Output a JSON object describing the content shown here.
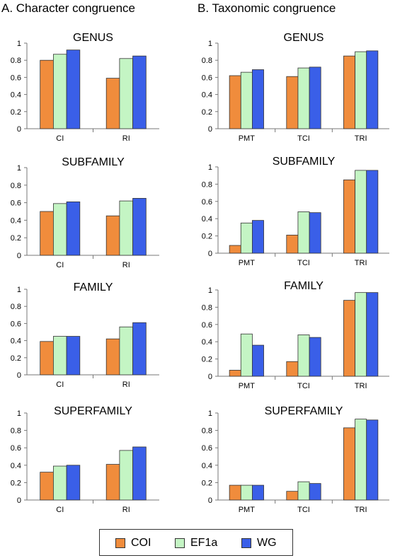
{
  "headings": {
    "a": "A. Character congruence",
    "b": "B. Taxonomic congruence"
  },
  "colors": {
    "COI": "#f08c3c",
    "EF1a": "#c4f5c4",
    "WG": "#3a5fe8"
  },
  "legend": [
    {
      "label": "COI",
      "color": "#f08c3c"
    },
    {
      "label": "EF1a",
      "color": "#c4f5c4"
    },
    {
      "label": "WG",
      "color": "#3a5fe8"
    }
  ],
  "chart_data": [
    {
      "id": "a-genus",
      "type": "bar",
      "title": "GENUS",
      "categories": [
        "CI",
        "RI"
      ],
      "ylim": [
        0,
        1
      ],
      "yticks": [
        "0",
        "0.2",
        "0.4",
        "0.6",
        "0.8",
        "1"
      ],
      "series": [
        {
          "name": "COI",
          "values": [
            0.8,
            0.59
          ]
        },
        {
          "name": "EF1a",
          "values": [
            0.87,
            0.82
          ]
        },
        {
          "name": "WG",
          "values": [
            0.92,
            0.85
          ]
        }
      ]
    },
    {
      "id": "b-genus",
      "type": "bar",
      "title": "GENUS",
      "categories": [
        "PMT",
        "TCI",
        "TRI"
      ],
      "ylim": [
        0,
        1
      ],
      "yticks": [
        "0",
        "0.2",
        "0.4",
        "0.6",
        "0.8",
        "1"
      ],
      "series": [
        {
          "name": "COI",
          "values": [
            0.62,
            0.61,
            0.85
          ]
        },
        {
          "name": "EF1a",
          "values": [
            0.66,
            0.71,
            0.9
          ]
        },
        {
          "name": "WG",
          "values": [
            0.69,
            0.72,
            0.91
          ]
        }
      ]
    },
    {
      "id": "a-subfamily",
      "type": "bar",
      "title": "SUBFAMILY",
      "categories": [
        "CI",
        "RI"
      ],
      "ylim": [
        0,
        1
      ],
      "yticks": [
        "0",
        "0.2",
        "0.4",
        "0.6",
        "0.8",
        "1"
      ],
      "series": [
        {
          "name": "COI",
          "values": [
            0.5,
            0.45
          ]
        },
        {
          "name": "EF1a",
          "values": [
            0.59,
            0.62
          ]
        },
        {
          "name": "WG",
          "values": [
            0.61,
            0.65
          ]
        }
      ]
    },
    {
      "id": "b-subfamily",
      "type": "bar",
      "title": "SUBFAMILY",
      "categories": [
        "PMT",
        "TCI",
        "TRI"
      ],
      "ylim": [
        0,
        1
      ],
      "yticks": [
        "0",
        "0.2",
        "0.4",
        "0.6",
        "0.8",
        "1"
      ],
      "series": [
        {
          "name": "COI",
          "values": [
            0.09,
            0.21,
            0.85
          ]
        },
        {
          "name": "EF1a",
          "values": [
            0.35,
            0.48,
            0.96
          ]
        },
        {
          "name": "WG",
          "values": [
            0.38,
            0.47,
            0.96
          ]
        }
      ]
    },
    {
      "id": "a-family",
      "type": "bar",
      "title": "FAMILY",
      "categories": [
        "CI",
        "RI"
      ],
      "ylim": [
        0,
        1
      ],
      "yticks": [
        "0",
        "0.2",
        "0.4",
        "0.6",
        "0.8",
        "1"
      ],
      "series": [
        {
          "name": "COI",
          "values": [
            0.39,
            0.42
          ]
        },
        {
          "name": "EF1a",
          "values": [
            0.45,
            0.56
          ]
        },
        {
          "name": "WG",
          "values": [
            0.45,
            0.61
          ]
        }
      ]
    },
    {
      "id": "b-family",
      "type": "bar",
      "title": "FAMILY",
      "categories": [
        "PMT",
        "TCI",
        "TRI"
      ],
      "ylim": [
        0,
        1
      ],
      "yticks": [
        "0",
        "0.2",
        "0.4",
        "0.6",
        "0.8",
        "1"
      ],
      "series": [
        {
          "name": "COI",
          "values": [
            0.07,
            0.17,
            0.88
          ]
        },
        {
          "name": "EF1a",
          "values": [
            0.49,
            0.48,
            0.97
          ]
        },
        {
          "name": "WG",
          "values": [
            0.36,
            0.45,
            0.97
          ]
        }
      ]
    },
    {
      "id": "a-superfamily",
      "type": "bar",
      "title": "SUPERFAMILY",
      "categories": [
        "CI",
        "RI"
      ],
      "ylim": [
        0,
        1
      ],
      "yticks": [
        "0",
        "0.2",
        "0.4",
        "0.6",
        "0.8",
        "1"
      ],
      "series": [
        {
          "name": "COI",
          "values": [
            0.32,
            0.41
          ]
        },
        {
          "name": "EF1a",
          "values": [
            0.39,
            0.57
          ]
        },
        {
          "name": "WG",
          "values": [
            0.4,
            0.61
          ]
        }
      ]
    },
    {
      "id": "b-superfamily",
      "type": "bar",
      "title": "SUPERFAMILY",
      "categories": [
        "PMT",
        "TCI",
        "TRI"
      ],
      "ylim": [
        0,
        1
      ],
      "yticks": [
        "0",
        "0.2",
        "0.4",
        "0.6",
        "0.8",
        "1"
      ],
      "series": [
        {
          "name": "COI",
          "values": [
            0.17,
            0.1,
            0.83
          ]
        },
        {
          "name": "EF1a",
          "values": [
            0.17,
            0.21,
            0.93
          ]
        },
        {
          "name": "WG",
          "values": [
            0.17,
            0.19,
            0.92
          ]
        }
      ]
    }
  ]
}
